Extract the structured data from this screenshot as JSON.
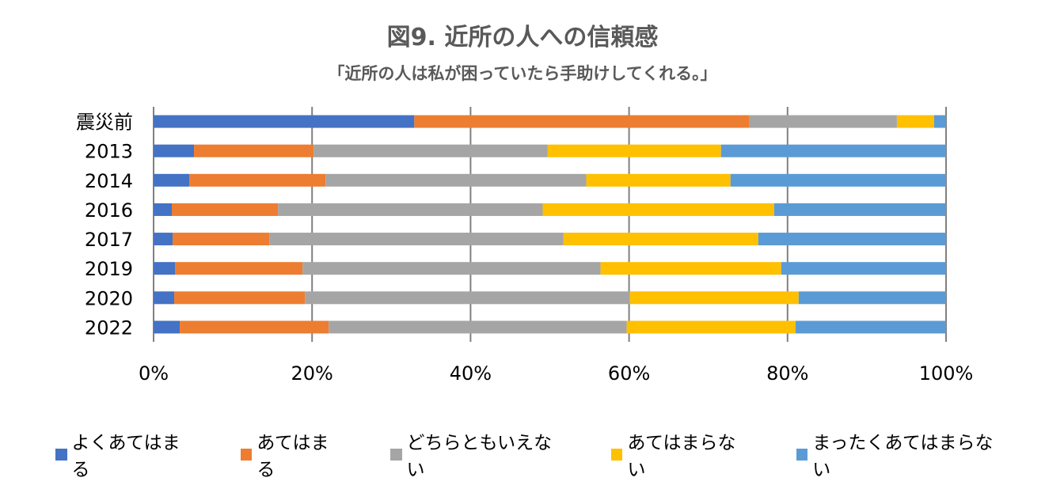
{
  "chart_data": {
    "type": "bar",
    "orientation": "horizontal",
    "stacked": "percent",
    "title": "図9. 近所の人への信頼感",
    "subtitle": "「近所の人は私が困っていたら手助けしてくれる。」",
    "xlabel": "",
    "ylabel": "",
    "xlim": [
      0,
      100
    ],
    "x_ticks": [
      "0%",
      "20%",
      "40%",
      "60%",
      "80%",
      "100%"
    ],
    "grid": "vertical",
    "legend_position": "bottom",
    "categories": [
      "震災前",
      "2013",
      "2014",
      "2016",
      "2017",
      "2019",
      "2020",
      "2022"
    ],
    "series": [
      {
        "name": "よくあてはまる",
        "color": "#4472C4",
        "values": [
          32.9,
          5.1,
          4.5,
          2.3,
          2.4,
          2.7,
          2.6,
          3.3
        ]
      },
      {
        "name": "あてはまる",
        "color": "#ED7D31",
        "values": [
          42.3,
          15.1,
          17.2,
          13.4,
          12.2,
          16.1,
          16.5,
          18.8
        ]
      },
      {
        "name": "どちらともいえない",
        "color": "#A5A5A5",
        "values": [
          18.6,
          29.5,
          32.9,
          33.4,
          37.1,
          37.6,
          41.0,
          37.6
        ]
      },
      {
        "name": "あてはまらない",
        "color": "#FFC000",
        "values": [
          4.7,
          21.9,
          18.2,
          29.2,
          24.6,
          22.8,
          21.3,
          21.3
        ]
      },
      {
        "name": "まったくあてはまらない",
        "color": "#5B9BD5",
        "values": [
          1.5,
          28.4,
          27.2,
          21.7,
          23.7,
          20.8,
          18.6,
          19.0
        ]
      }
    ]
  }
}
